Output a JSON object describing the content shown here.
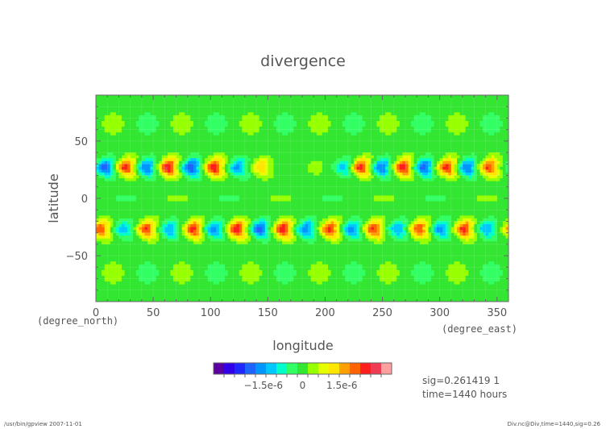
{
  "chart_data": {
    "type": "heatmap",
    "title": "divergence",
    "xlabel": "longitude",
    "ylabel": "latitude",
    "x_unit_label": "(degree_east)",
    "y_unit_label": "(degree_north)",
    "xlim": [
      0,
      360
    ],
    "ylim": [
      -90,
      90
    ],
    "x_ticks": [
      0,
      50,
      100,
      150,
      200,
      250,
      300,
      350
    ],
    "y_ticks": [
      -50,
      0,
      50
    ],
    "x_tick_labels": [
      "0",
      "50",
      "100",
      "150",
      "200",
      "250",
      "300",
      "350"
    ],
    "y_tick_labels": [
      "−50",
      "0",
      "50"
    ],
    "field": {
      "description_units": "divergence value at cell centres",
      "wave_rows": [
        {
          "lat_center": 27,
          "lat_halfwidth": 13
        },
        {
          "lat_center": -27,
          "lat_halfwidth": 13
        }
      ],
      "north_band_extrema": [
        {
          "lon": 7,
          "value": -2e-06
        },
        {
          "lon": 25,
          "value": 2.4e-06
        },
        {
          "lon": 43,
          "value": -1.8e-06
        },
        {
          "lon": 62,
          "value": 2.7e-06
        },
        {
          "lon": 82,
          "value": -2.2e-06
        },
        {
          "lon": 102,
          "value": 2.6e-06
        },
        {
          "lon": 123,
          "value": -1.6e-06
        },
        {
          "lon": 143,
          "value": 1.4e-06
        },
        {
          "lon": 190,
          "value": 4e-07
        },
        {
          "lon": 215,
          "value": -1.2e-06
        },
        {
          "lon": 230,
          "value": 2.4e-06
        },
        {
          "lon": 248,
          "value": -1.8e-06
        },
        {
          "lon": 267,
          "value": 2.6e-06
        },
        {
          "lon": 285,
          "value": -2e-06
        },
        {
          "lon": 305,
          "value": 2.4e-06
        },
        {
          "lon": 323,
          "value": -1.8e-06
        },
        {
          "lon": 342,
          "value": 2.3e-06
        }
      ],
      "south_band_extrema": [
        {
          "lon": 3,
          "value": 2.2e-06
        },
        {
          "lon": 23,
          "value": -1.2e-06
        },
        {
          "lon": 43,
          "value": 2.3e-06
        },
        {
          "lon": 63,
          "value": -1.4e-06
        },
        {
          "lon": 84,
          "value": 2.4e-06
        },
        {
          "lon": 102,
          "value": -1.6e-06
        },
        {
          "lon": 122,
          "value": 2.6e-06
        },
        {
          "lon": 142,
          "value": -2e-06
        },
        {
          "lon": 162,
          "value": 2.6e-06
        },
        {
          "lon": 182,
          "value": -1.8e-06
        },
        {
          "lon": 203,
          "value": 2.4e-06
        },
        {
          "lon": 222,
          "value": -1.6e-06
        },
        {
          "lon": 241,
          "value": 2.3e-06
        },
        {
          "lon": 262,
          "value": -1.4e-06
        },
        {
          "lon": 281,
          "value": 2.2e-06
        },
        {
          "lon": 300,
          "value": -1.6e-06
        },
        {
          "lon": 320,
          "value": 2.4e-06
        },
        {
          "lon": 340,
          "value": -1.4e-06
        }
      ],
      "background_value": 0.0
    },
    "colorbar": {
      "levels": [
        -3e-06,
        -2.6e-06,
        -2.2e-06,
        -1.8e-06,
        -1.4e-06,
        -1e-06,
        -6e-07,
        -2e-07,
        2e-07,
        6e-07,
        1e-06,
        1.4e-06,
        1.8e-06,
        2.2e-06,
        2.6e-06,
        3e-06
      ],
      "colors": [
        "#5a00a0",
        "#3200e6",
        "#1e28ff",
        "#1e64ff",
        "#0096ff",
        "#00c8ff",
        "#00ffc8",
        "#32ff64",
        "#32e632",
        "#96ff00",
        "#e6ff00",
        "#ffe600",
        "#ffa000",
        "#ff6400",
        "#ff1e1e",
        "#f03c50",
        "#ffa0a0"
      ],
      "tick_labels": [
        "−1.5e-6",
        "0",
        "1.5e-6"
      ],
      "tick_values": [
        -1.5e-06,
        0,
        1.5e-06
      ]
    }
  },
  "info": {
    "sig": "sig=0.261419 1",
    "time": "time=1440 hours"
  },
  "footer": {
    "left": "/usr/bin/gpview  2007-11-01",
    "right": "Div.nc@Div,time=1440,sig=0.26"
  },
  "colors": {
    "background_field": "#32e632",
    "text": "#555555"
  }
}
